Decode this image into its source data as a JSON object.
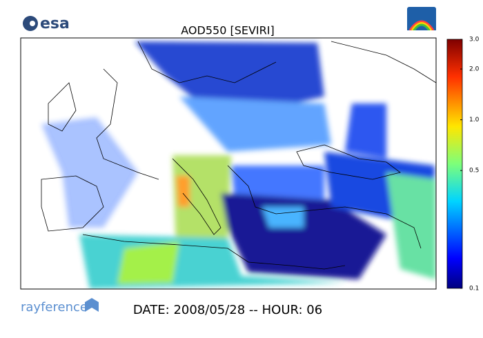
{
  "logo": {
    "text": "esa"
  },
  "title": "AOD550   [SEVIRI]",
  "colorbar": {
    "scale": "log",
    "range": [
      0.1,
      3
    ],
    "ticks": [
      {
        "value": 3,
        "label": "3.0"
      },
      {
        "value": 2,
        "label": "2.0"
      },
      {
        "value": 1,
        "label": "1.0"
      },
      0.5,
      0.1
    ]
  },
  "footer": {
    "brand": "rayference",
    "date": "DATE: 2008/05/28 -- HOUR: 06"
  }
}
